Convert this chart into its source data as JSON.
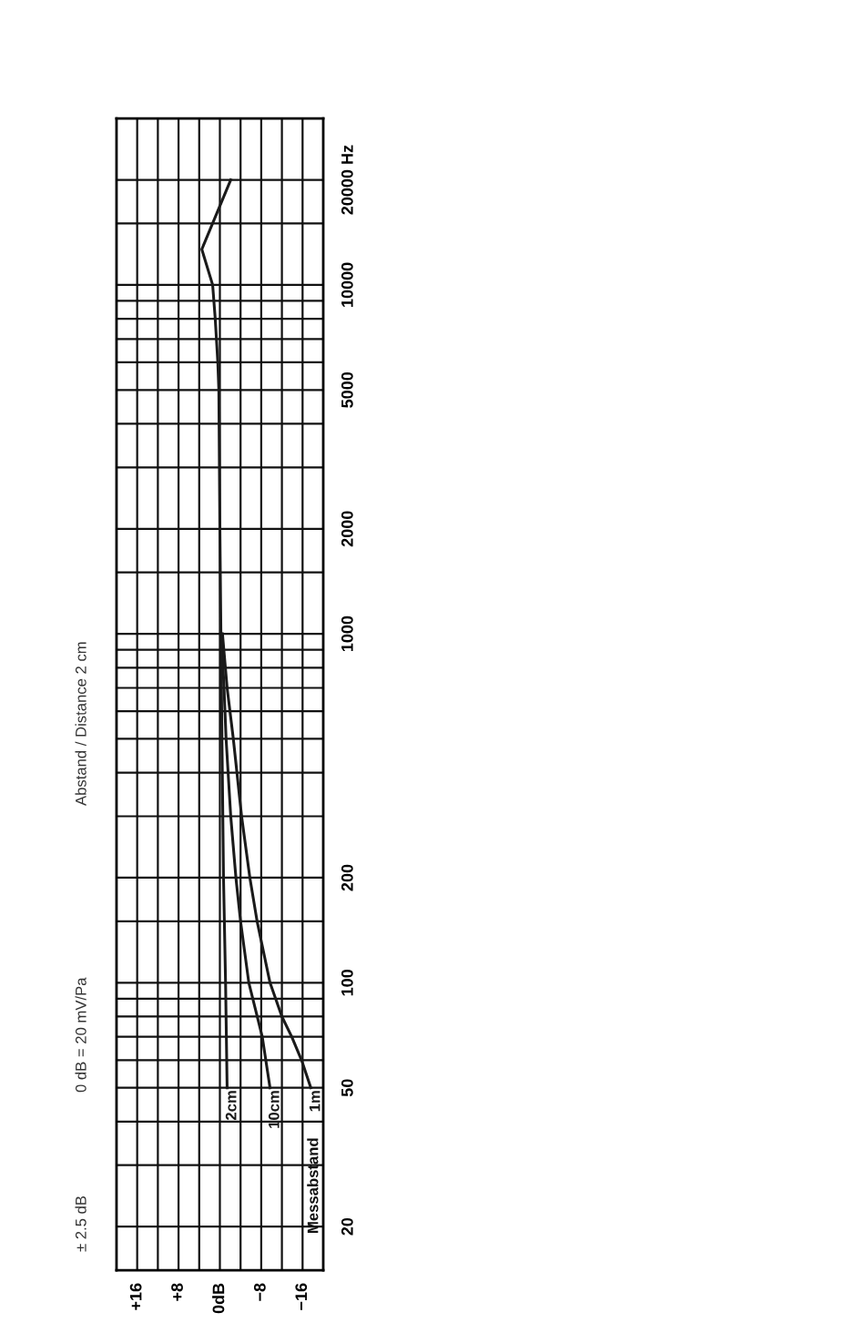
{
  "chart_data": {
    "type": "line",
    "annotations": [
      "± 2.5 dB",
      "0 dB = 20 mV/Pa",
      "Abstand / Distance 2 cm",
      "Messabstand"
    ],
    "series": [
      {
        "name": "2cm",
        "color": "#1a1a1a",
        "x": [
          -1.4,
          -1.1,
          -0.7,
          -0.4,
          -0.2,
          0,
          0.2,
          0.4,
          0.9,
          1.4,
          3.5,
          -2.1
        ],
        "values": [
          50,
          100,
          200,
          500,
          1000,
          2000,
          5000,
          6000,
          8000,
          10000,
          12650,
          20000
        ]
      },
      {
        "name": "10cm",
        "color": "#1a1a1a",
        "x": [
          -9.7,
          -8.2,
          -5.6,
          -4,
          -3.1,
          -2.1,
          -1.2,
          -0.8,
          -0.3
        ],
        "values": [
          50,
          70,
          100,
          150,
          200,
          300,
          500,
          700,
          1000
        ]
      },
      {
        "name": "1m",
        "color": "#1a1a1a",
        "x": [
          -17.6,
          -15.8,
          -13.9,
          -12,
          -9.7,
          -7.2,
          -5.8,
          -4.2,
          -2.6,
          -1.4,
          -0.5
        ],
        "values": [
          50,
          60,
          70,
          80,
          100,
          150,
          200,
          300,
          500,
          700,
          1000
        ]
      }
    ],
    "log": "y",
    "grid": true,
    "line_style": "solid",
    "ylim": [
      15,
      30000
    ],
    "yticks": [
      20,
      {
        "value": 30,
        "label": null
      },
      {
        "value": 40,
        "label": null
      },
      50,
      {
        "value": 60,
        "label": null
      },
      {
        "value": 70,
        "label": null
      },
      {
        "value": 80,
        "label": null
      },
      {
        "value": 90,
        "label": null
      },
      100,
      {
        "value": 150,
        "label": null
      },
      200,
      {
        "value": 300,
        "label": null
      },
      {
        "value": 400,
        "label": null
      },
      {
        "value": 500,
        "label": null
      },
      {
        "value": 600,
        "label": null
      },
      {
        "value": 700,
        "label": null
      },
      {
        "value": 800,
        "label": null
      },
      {
        "value": 900,
        "label": null
      },
      1000,
      {
        "value": 1500,
        "label": null
      },
      2000,
      {
        "value": 3000,
        "label": null
      },
      {
        "value": 4000,
        "label": null
      },
      5000,
      {
        "value": 6000,
        "label": null
      },
      {
        "value": 7000,
        "label": null
      },
      {
        "value": 8000,
        "label": null
      },
      {
        "value": 9000,
        "label": null
      },
      10000,
      {
        "value": 15000,
        "label": null
      },
      {
        "value": 20000,
        "label": "20000 Hz"
      }
    ],
    "xlim": [
      20,
      -20
    ],
    "xticks": [
      {
        "value": 16,
        "label": "+16"
      },
      {
        "value": 12,
        "label": null
      },
      {
        "value": 8,
        "label": "+8"
      },
      {
        "value": 4,
        "label": null
      },
      {
        "value": 0,
        "label": "0dB"
      },
      {
        "value": -4,
        "label": null
      },
      {
        "value": -8,
        "label": "−8"
      },
      {
        "value": -12,
        "label": null
      },
      {
        "value": -16,
        "label": "−16"
      }
    ]
  }
}
